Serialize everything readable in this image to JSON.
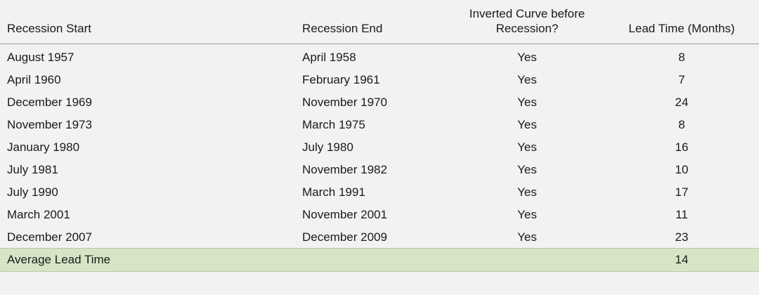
{
  "header": {
    "recession_start": "Recession Start",
    "recession_end": "Recession End",
    "inverted_line1": "Inverted Curve before",
    "inverted_line2": "Recession?",
    "lead_time": "Lead Time (Months)"
  },
  "rows": [
    {
      "start": "August 1957",
      "end": "April 1958",
      "inverted": "Yes",
      "lead": "8"
    },
    {
      "start": "April 1960",
      "end": "February 1961",
      "inverted": "Yes",
      "lead": "7"
    },
    {
      "start": "December 1969",
      "end": "November 1970",
      "inverted": "Yes",
      "lead": "24"
    },
    {
      "start": "November 1973",
      "end": "March 1975",
      "inverted": "Yes",
      "lead": "8"
    },
    {
      "start": "January 1980",
      "end": "July 1980",
      "inverted": "Yes",
      "lead": "16"
    },
    {
      "start": "July 1981",
      "end": "November 1982",
      "inverted": "Yes",
      "lead": "10"
    },
    {
      "start": "July 1990",
      "end": "March 1991",
      "inverted": "Yes",
      "lead": "17"
    },
    {
      "start": "March 2001",
      "end": "November 2001",
      "inverted": "Yes",
      "lead": "11"
    },
    {
      "start": "December 2007",
      "end": "December 2009",
      "inverted": "Yes",
      "lead": "23"
    }
  ],
  "average": {
    "label": "Average Lead Time",
    "value": "14"
  },
  "colors": {
    "background": "#f2f2f2",
    "average_row": "#d6e5c6"
  }
}
